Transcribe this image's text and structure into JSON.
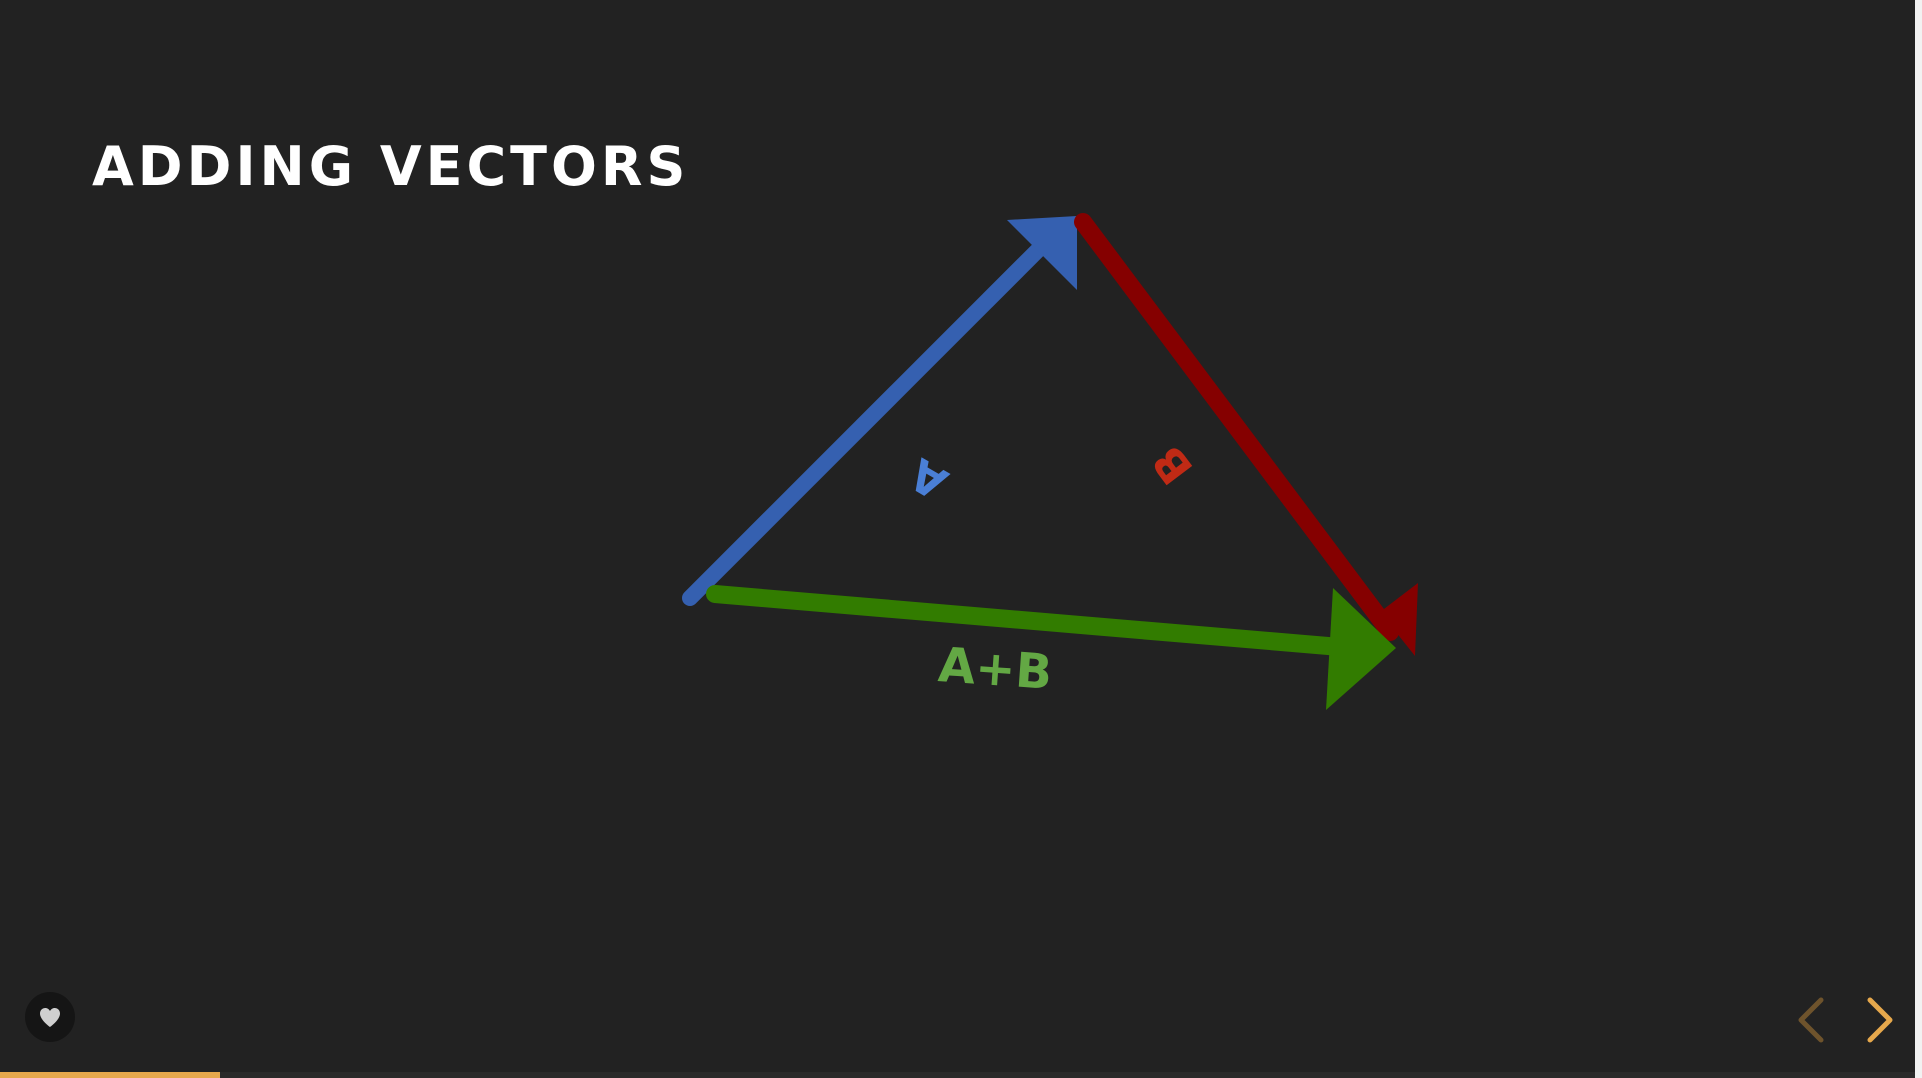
{
  "slide": {
    "title": "ADDING VECTORS"
  },
  "diagram": {
    "vectors": [
      {
        "id": "A",
        "label": "A",
        "color": "#3560b0",
        "label_color": "#4a7fd6"
      },
      {
        "id": "B",
        "label": "B",
        "color": "#850000",
        "label_color": "#c02a15"
      },
      {
        "id": "sum",
        "label": "A+B",
        "color": "#327c00",
        "label_color": "#63a844"
      }
    ]
  },
  "controls": {
    "like_icon": "heart-icon",
    "prev_icon": "chevron-left-icon",
    "next_icon": "chevron-right-icon",
    "accent_color": "#e6a84c"
  },
  "progress": {
    "fraction": 0.115
  }
}
